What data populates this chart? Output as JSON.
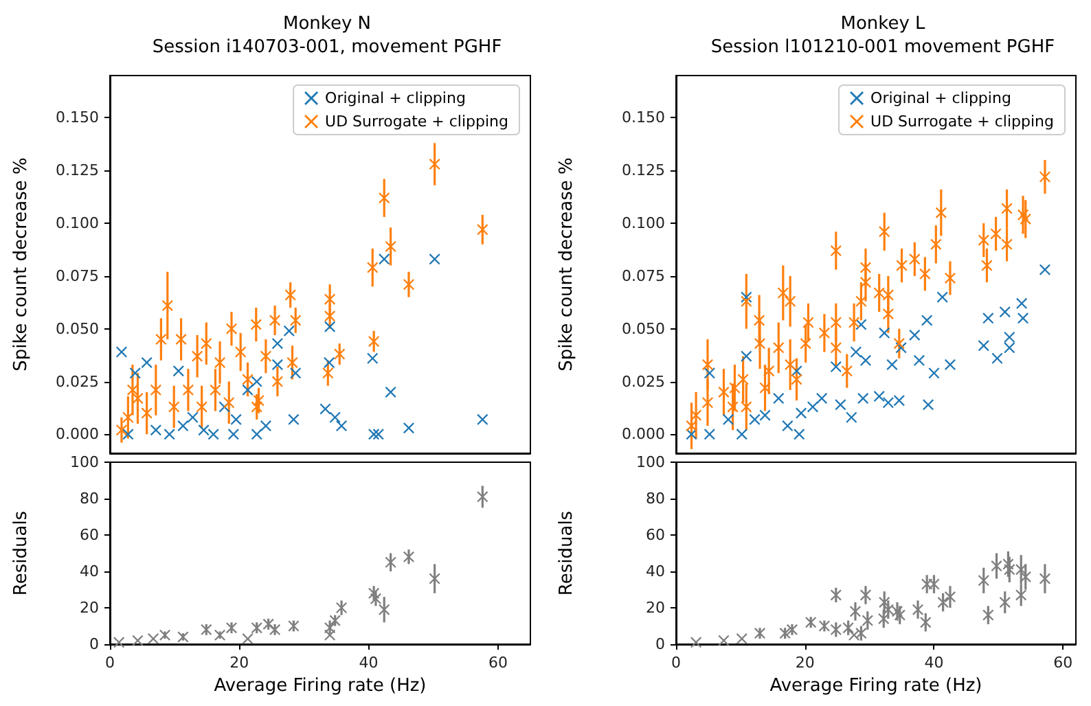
{
  "chart_data": [
    {
      "type": "scatter",
      "title": "Monkey N",
      "subtitle": "Session i140703-001, movement PGHF",
      "ylabel": "Spike count decrease %",
      "marker": "cross",
      "legend": "top right",
      "tick_labels": "y",
      "xlim": [
        0,
        65
      ],
      "xticks": [
        0,
        20,
        40,
        60
      ],
      "ylim": [
        -0.009,
        0.17
      ],
      "yticks": [
        {
          "value": 0,
          "label": "0.000"
        },
        {
          "value": 0.025,
          "label": "0.025"
        },
        {
          "value": 0.05,
          "label": "0.050"
        },
        {
          "value": 0.075,
          "label": "0.075"
        },
        {
          "value": 0.1,
          "label": "0.100"
        },
        {
          "value": 0.125,
          "label": "0.125"
        },
        {
          "value": 0.15,
          "label": "0.150"
        }
      ],
      "series": [
        {
          "name": "Original + clipping",
          "color": "#1f77b4",
          "x": [
            50.2,
            42.4,
            34.0,
            27.7,
            25.9,
            25.9,
            28.7,
            33.9,
            40.6,
            43.4,
            33.3,
            34.8,
            35.8,
            28.4,
            40.8,
            41.5,
            46.2,
            57.6,
            24.1,
            22.7,
            19.1,
            16.0,
            14.5,
            19.5,
            21.3,
            22.7,
            1.8,
            5.7,
            3.9,
            10.6,
            17.7,
            11.3,
            7.1,
            2.8,
            9.2,
            12.8
          ],
          "values": [
            0.083,
            0.083,
            0.051,
            0.049,
            0.043,
            0.033,
            0.029,
            0.034,
            0.036,
            0.02,
            0.012,
            0.008,
            0.004,
            0.007,
            0.0,
            0.0,
            0.003,
            0.007,
            0.004,
            0.0,
            0.0,
            0.0,
            0.002,
            0.007,
            0.021,
            0.025,
            0.039,
            0.034,
            0.029,
            0.03,
            0.013,
            0.004,
            0.002,
            0.0,
            0.0,
            0.008
          ]
        },
        {
          "name": "UD Surrogate + clipping",
          "color": "#ff7f0e",
          "x": [
            50.2,
            42.4,
            57.6,
            43.4,
            40.6,
            46.2,
            34.0,
            34.0,
            27.9,
            28.7,
            25.5,
            40.8,
            35.5,
            33.7,
            28.2,
            25.9,
            23.0,
            22.6,
            18.8,
            14.9,
            11.0,
            8.9,
            7.9,
            13.5,
            17.0,
            20.2,
            21.3,
            16.3,
            12.1,
            7.1,
            4.3,
            2.8,
            1.8,
            5.7,
            9.9,
            14.2,
            18.4,
            3.5,
            24.1,
            22.7
          ],
          "values": [
            0.128,
            0.112,
            0.097,
            0.089,
            0.079,
            0.071,
            0.064,
            0.056,
            0.066,
            0.054,
            0.054,
            0.044,
            0.038,
            0.029,
            0.034,
            0.025,
            0.016,
            0.052,
            0.05,
            0.043,
            0.045,
            0.061,
            0.045,
            0.037,
            0.034,
            0.039,
            0.026,
            0.021,
            0.021,
            0.021,
            0.017,
            0.008,
            0.002,
            0.01,
            0.013,
            0.013,
            0.015,
            0.021,
            0.037,
            0.013
          ],
          "errors": [
            0.01,
            0.009,
            0.007,
            0.009,
            0.009,
            0.006,
            0.007,
            0.006,
            0.006,
            0.006,
            0.007,
            0.005,
            0.005,
            0.006,
            0.008,
            0.007,
            0.006,
            0.008,
            0.008,
            0.01,
            0.01,
            0.016,
            0.01,
            0.01,
            0.01,
            0.009,
            0.008,
            0.01,
            0.01,
            0.012,
            0.012,
            0.01,
            0.006,
            0.01,
            0.01,
            0.01,
            0.01,
            0.012,
            0.008,
            0.006
          ]
        }
      ]
    },
    {
      "type": "scatter",
      "title": "Monkey L",
      "subtitle": "Session l101210-001 movement PGHF",
      "ylabel": "Spike count decrease %",
      "marker": "cross",
      "legend": "top right",
      "tick_labels": "y",
      "xlim": [
        0,
        62
      ],
      "xticks": [
        0,
        20,
        40,
        60
      ],
      "ylim": [
        -0.009,
        0.17
      ],
      "yticks": [
        {
          "value": 0,
          "label": "0.000"
        },
        {
          "value": 0.025,
          "label": "0.025"
        },
        {
          "value": 0.05,
          "label": "0.050"
        },
        {
          "value": 0.075,
          "label": "0.075"
        },
        {
          "value": 0.1,
          "label": "0.100"
        },
        {
          "value": 0.125,
          "label": "0.125"
        },
        {
          "value": 0.15,
          "label": "0.150"
        }
      ],
      "series": [
        {
          "name": "Original + clipping",
          "color": "#1f77b4",
          "x": [
            57.2,
            53.6,
            53.8,
            51.0,
            48.4,
            47.7,
            49.8,
            51.7,
            51.7,
            41.3,
            38.9,
            37.0,
            37.7,
            40.0,
            42.5,
            39.1,
            34.9,
            32.3,
            33.5,
            28.7,
            27.9,
            29.4,
            24.8,
            29.0,
            31.5,
            32.9,
            34.6,
            27.2,
            25.5,
            22.6,
            21.2,
            19.4,
            19.1,
            17.3,
            10.9,
            10.9,
            15.9,
            13.8,
            12.2,
            10.2,
            8.1,
            5.2,
            2.4,
            5.2,
            18.7
          ],
          "values": [
            0.078,
            0.062,
            0.055,
            0.058,
            0.055,
            0.042,
            0.036,
            0.046,
            0.041,
            0.065,
            0.054,
            0.047,
            0.035,
            0.029,
            0.033,
            0.014,
            0.041,
            0.048,
            0.033,
            0.052,
            0.039,
            0.035,
            0.032,
            0.017,
            0.018,
            0.015,
            0.016,
            0.008,
            0.014,
            0.017,
            0.013,
            0.01,
            0.0,
            0.004,
            0.065,
            0.037,
            0.017,
            0.009,
            0.007,
            0.0,
            0.007,
            0.029,
            0.0,
            0.0,
            0.03
          ]
        },
        {
          "name": "UD Surrogate + clipping",
          "color": "#ff7f0e",
          "x": [
            57.2,
            41.1,
            32.3,
            24.8,
            51.3,
            53.8,
            54.2,
            47.7,
            49.6,
            51.3,
            48.2,
            40.3,
            37.0,
            35.0,
            38.6,
            42.5,
            29.4,
            29.4,
            31.5,
            32.9,
            28.7,
            27.6,
            32.9,
            34.6,
            24.8,
            23.0,
            20.5,
            20.1,
            24.8,
            26.5,
            16.6,
            17.7,
            10.9,
            12.9,
            13.0,
            15.9,
            17.7,
            18.7,
            14.4,
            13.8,
            10.4,
            9.1,
            7.4,
            4.9,
            4.9,
            3.1,
            2.4,
            10.9,
            8.8
          ],
          "values": [
            0.122,
            0.105,
            0.096,
            0.087,
            0.107,
            0.104,
            0.102,
            0.092,
            0.095,
            0.09,
            0.08,
            0.09,
            0.083,
            0.08,
            0.076,
            0.074,
            0.079,
            0.072,
            0.067,
            0.066,
            0.063,
            0.053,
            0.057,
            0.043,
            0.053,
            0.048,
            0.053,
            0.043,
            0.041,
            0.03,
            0.067,
            0.063,
            0.063,
            0.054,
            0.043,
            0.041,
            0.033,
            0.026,
            0.03,
            0.022,
            0.026,
            0.022,
            0.02,
            0.033,
            0.015,
            0.009,
            0.004,
            0.013,
            0.013
          ],
          "errors": [
            0.008,
            0.011,
            0.009,
            0.009,
            0.009,
            0.009,
            0.009,
            0.008,
            0.008,
            0.008,
            0.008,
            0.009,
            0.008,
            0.008,
            0.008,
            0.008,
            0.009,
            0.009,
            0.009,
            0.009,
            0.009,
            0.009,
            0.009,
            0.007,
            0.009,
            0.009,
            0.009,
            0.009,
            0.009,
            0.008,
            0.013,
            0.012,
            0.013,
            0.012,
            0.012,
            0.012,
            0.012,
            0.01,
            0.011,
            0.011,
            0.011,
            0.011,
            0.011,
            0.012,
            0.011,
            0.011,
            0.011,
            0.011,
            0.011
          ]
        }
      ]
    },
    {
      "type": "scatter",
      "xlabel": "Average Firing rate (Hz)",
      "ylabel": "Residuals",
      "marker": "cross",
      "xlim": [
        0,
        65
      ],
      "xticks": [
        0,
        20,
        40,
        60
      ],
      "ylim": [
        0,
        100
      ],
      "yticks": [
        0,
        20,
        40,
        60,
        80,
        100
      ],
      "series": [
        {
          "color": "#7f7f7f",
          "x": [
            57.6,
            43.4,
            46.2,
            50.2,
            42.4,
            40.8,
            41.1,
            35.8,
            34.0,
            34.0,
            34.8,
            28.4,
            25.5,
            24.5,
            22.7,
            18.8,
            14.9,
            8.5,
            4.3,
            1.4,
            11.3,
            17.0,
            21.3,
            6.7
          ],
          "values": [
            81,
            45,
            48,
            36,
            19,
            28,
            25,
            20,
            9,
            5,
            13,
            10,
            8,
            11,
            9,
            9,
            8,
            5,
            2,
            1,
            4,
            5,
            3,
            3
          ],
          "errors": [
            6,
            5,
            4,
            8,
            7,
            4,
            4,
            4,
            4,
            null,
            3,
            3,
            3,
            3,
            3,
            3,
            3,
            2,
            null,
            null,
            2,
            2,
            null,
            null
          ]
        }
      ]
    },
    {
      "type": "scatter",
      "xlabel": "Average Firing rate (Hz)",
      "ylabel": "Residuals",
      "marker": "cross",
      "xlim": [
        0,
        62
      ],
      "xticks": [
        0,
        20,
        40,
        60
      ],
      "ylim": [
        0,
        100
      ],
      "yticks": [
        0,
        20,
        40,
        60,
        80,
        100
      ],
      "series": [
        {
          "color": "#7f7f7f",
          "x": [
            57.2,
            51.5,
            49.7,
            47.7,
            53.5,
            54.2,
            51.7,
            53.5,
            51.0,
            48.4,
            42.5,
            41.4,
            38.9,
            40.0,
            38.7,
            37.5,
            34.7,
            34.3,
            32.3,
            32.9,
            32.2,
            29.4,
            29.7,
            27.8,
            28.7,
            27.6,
            26.7,
            24.8,
            24.8,
            23.0,
            20.9,
            18.0,
            16.9,
            13.0,
            10.2,
            7.4,
            3.1
          ],
          "values": [
            36,
            44,
            43,
            35,
            41,
            37,
            41,
            27,
            23,
            16,
            26,
            23,
            33,
            33,
            12,
            19,
            16,
            18,
            23,
            19,
            14,
            27,
            13,
            18,
            6,
            5,
            9,
            27,
            8,
            10,
            12,
            8,
            6,
            6,
            3,
            2,
            1
          ],
          "errors": [
            8,
            7,
            7,
            7,
            8,
            7,
            7,
            6,
            6,
            5,
            6,
            5,
            5,
            5,
            5,
            5,
            5,
            5,
            6,
            5,
            5,
            5,
            5,
            5,
            4,
            null,
            4,
            4,
            4,
            3,
            3,
            3,
            3,
            3,
            null,
            null,
            null
          ]
        }
      ]
    }
  ]
}
